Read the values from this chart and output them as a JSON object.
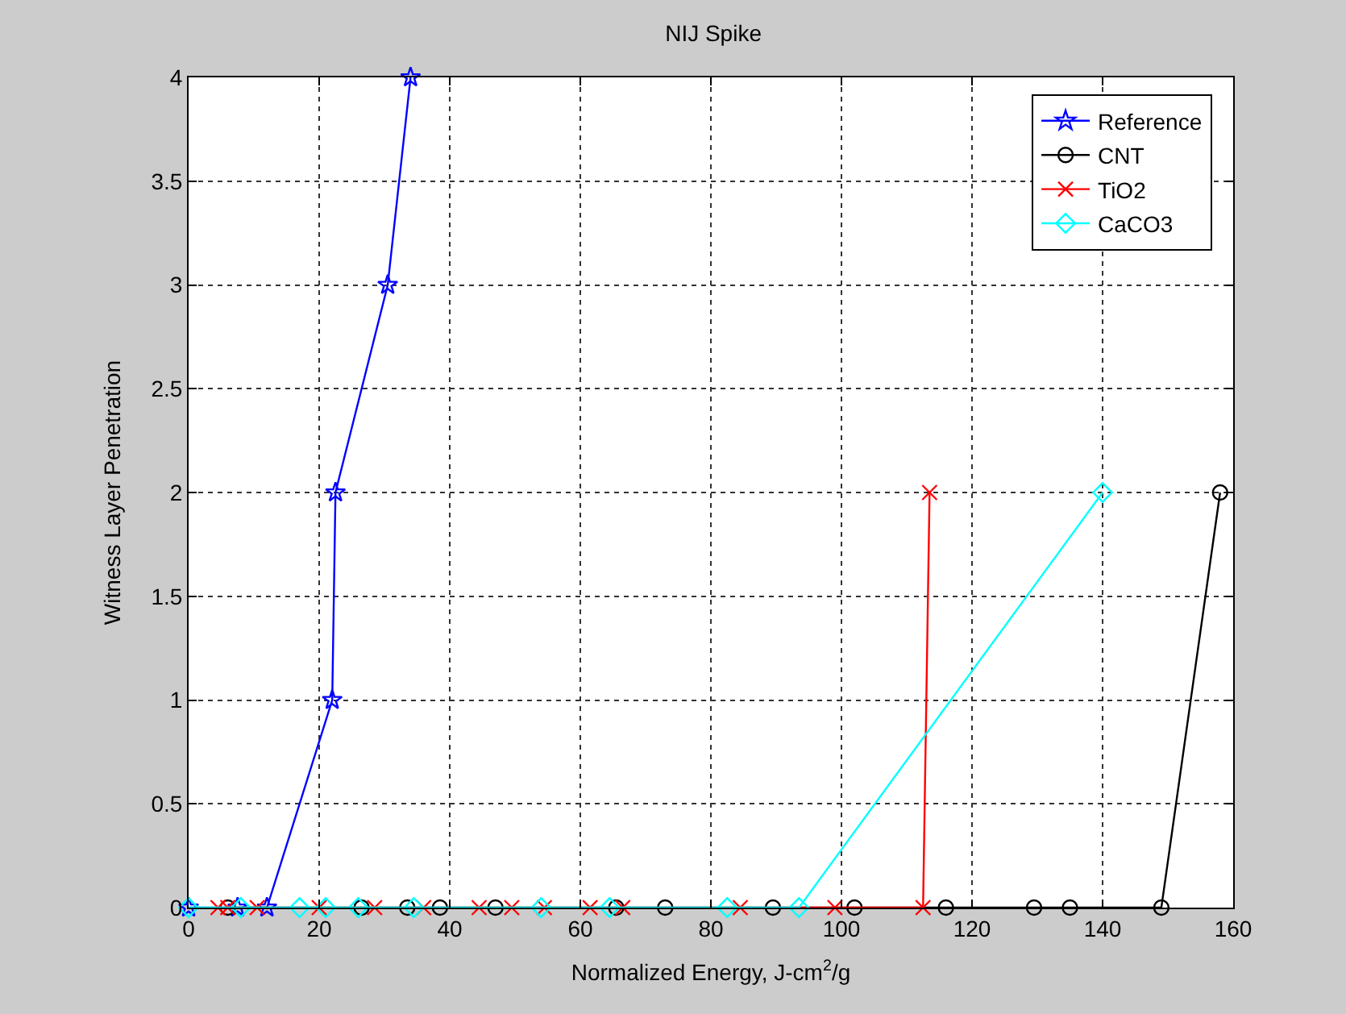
{
  "chart_data": {
    "type": "line",
    "title": "NIJ Spike",
    "xlabel": "Normalized Energy, J-cm$^{2}$/g",
    "ylabel": "Witness Layer Penetration",
    "xlim": [
      0,
      160
    ],
    "xticks": [
      0,
      20,
      40,
      60,
      80,
      100,
      120,
      140,
      160
    ],
    "ylim": [
      0,
      4
    ],
    "yticks": [
      0,
      0.5,
      1,
      1.5,
      2,
      2.5,
      3,
      3.5,
      4
    ],
    "grid": true,
    "legend": "top right",
    "line_style": "solid",
    "series": [
      {
        "name": "Reference",
        "color": "#0000ff",
        "marker": "star",
        "x": [
          0,
          7.5,
          12,
          22,
          22.5,
          30.5,
          34
        ],
        "values": [
          0,
          0,
          0,
          1,
          2,
          3,
          4
        ]
      },
      {
        "name": "CNT",
        "color": "#000000",
        "marker": "circle",
        "x": [
          6,
          26.5,
          33.5,
          38.5,
          47,
          65.5,
          73,
          89.5,
          102,
          116,
          129.5,
          135,
          149,
          158
        ],
        "values": [
          0,
          0,
          0,
          0,
          0,
          0,
          0,
          0,
          0,
          0,
          0,
          0,
          0,
          2
        ]
      },
      {
        "name": "TiO2",
        "color": "#ff0000",
        "marker": "cross",
        "x": [
          4.5,
          6,
          10.5,
          20,
          28.5,
          36,
          44.5,
          49.5,
          54.5,
          61.5,
          66.5,
          84.5,
          99,
          112.5,
          113.5
        ],
        "values": [
          0,
          0,
          0,
          0,
          0,
          0,
          0,
          0,
          0,
          0,
          0,
          0,
          0,
          0,
          2
        ]
      },
      {
        "name": "CaCO3",
        "color": "#00ffff",
        "marker": "diamond",
        "x": [
          0,
          8,
          17,
          21,
          26,
          34.5,
          54,
          64.5,
          82.5,
          93.5,
          140
        ],
        "values": [
          0,
          0,
          0,
          0,
          0,
          0,
          0,
          0,
          0,
          0,
          2
        ]
      }
    ]
  }
}
